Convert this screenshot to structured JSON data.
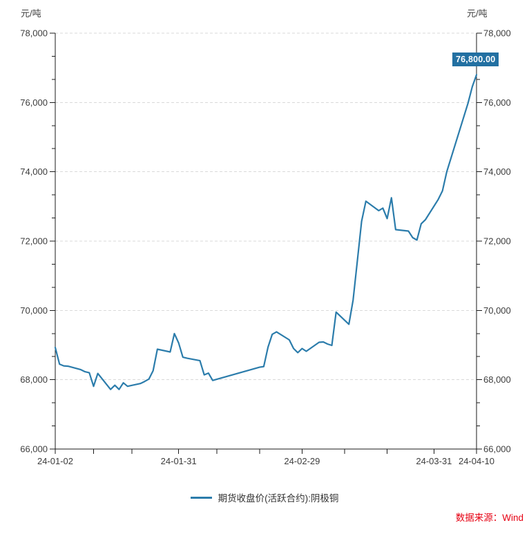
{
  "chart_data": {
    "type": "line",
    "unit_left": "元/吨",
    "unit_right": "元/吨",
    "grid": "dashed-horizontal",
    "legend_position": "bottom-center",
    "y_axis": {
      "min": 66000,
      "max": 78000,
      "major_step": 2000,
      "minor_divisions": 3,
      "tick_labels": [
        "66,000",
        "68,000",
        "70,000",
        "72,000",
        "74,000",
        "76,000",
        "78,000"
      ]
    },
    "x_axis": {
      "start_date": "24-01-02",
      "end_date": "24-04-10",
      "scale": "calendar-days",
      "tick_dates": [
        "24-01-02",
        "24-01-11",
        "24-01-20",
        "24-01-31",
        "24-02-09",
        "24-02-19",
        "24-02-29",
        "24-03-10",
        "24-03-20",
        "24-03-31",
        "24-04-10"
      ],
      "label_dates": [
        "24-01-02",
        "24-01-31",
        "24-02-29",
        "24-03-31",
        "24-04-10"
      ]
    },
    "series": [
      {
        "name": "期货收盘价(活跃合约):阴极铜",
        "color": "#2b7cab",
        "points": [
          [
            "24-01-02",
            68930
          ],
          [
            "24-01-03",
            68450
          ],
          [
            "24-01-04",
            68400
          ],
          [
            "24-01-05",
            68390
          ],
          [
            "24-01-08",
            68290
          ],
          [
            "24-01-09",
            68230
          ],
          [
            "24-01-10",
            68200
          ],
          [
            "24-01-11",
            67810
          ],
          [
            "24-01-12",
            68180
          ],
          [
            "24-01-15",
            67720
          ],
          [
            "24-01-16",
            67840
          ],
          [
            "24-01-17",
            67720
          ],
          [
            "24-01-18",
            67910
          ],
          [
            "24-01-19",
            67810
          ],
          [
            "24-01-22",
            67890
          ],
          [
            "24-01-23",
            67950
          ],
          [
            "24-01-24",
            68020
          ],
          [
            "24-01-25",
            68260
          ],
          [
            "24-01-26",
            68880
          ],
          [
            "24-01-29",
            68800
          ],
          [
            "24-01-30",
            69330
          ],
          [
            "24-01-31",
            69060
          ],
          [
            "24-02-01",
            68650
          ],
          [
            "24-02-02",
            68620
          ],
          [
            "24-02-05",
            68550
          ],
          [
            "24-02-06",
            68140
          ],
          [
            "24-02-07",
            68190
          ],
          [
            "24-02-08",
            67980
          ],
          [
            "24-02-19",
            68360
          ],
          [
            "24-02-20",
            68380
          ],
          [
            "24-02-21",
            68940
          ],
          [
            "24-02-22",
            69310
          ],
          [
            "24-02-23",
            69380
          ],
          [
            "24-02-26",
            69150
          ],
          [
            "24-02-27",
            68900
          ],
          [
            "24-02-28",
            68780
          ],
          [
            "24-02-29",
            68900
          ],
          [
            "24-03-01",
            68820
          ],
          [
            "24-03-04",
            69080
          ],
          [
            "24-03-05",
            69090
          ],
          [
            "24-03-06",
            69030
          ],
          [
            "24-03-07",
            68990
          ],
          [
            "24-03-08",
            69950
          ],
          [
            "24-03-11",
            69600
          ],
          [
            "24-03-12",
            70300
          ],
          [
            "24-03-13",
            71440
          ],
          [
            "24-03-14",
            72570
          ],
          [
            "24-03-15",
            73150
          ],
          [
            "24-03-18",
            72880
          ],
          [
            "24-03-19",
            72950
          ],
          [
            "24-03-20",
            72650
          ],
          [
            "24-03-21",
            73250
          ],
          [
            "24-03-22",
            72330
          ],
          [
            "24-03-25",
            72290
          ],
          [
            "24-03-26",
            72100
          ],
          [
            "24-03-27",
            72030
          ],
          [
            "24-03-28",
            72500
          ],
          [
            "24-03-29",
            72620
          ],
          [
            "24-04-01",
            73200
          ],
          [
            "24-04-02",
            73450
          ],
          [
            "24-04-03",
            74000
          ],
          [
            "24-04-08",
            75980
          ],
          [
            "24-04-09",
            76450
          ],
          [
            "24-04-10",
            76800
          ]
        ]
      }
    ],
    "last_price_label": "76,800.00",
    "last_price_bg": "#2270a2"
  },
  "footer": {
    "source": "数据来源：Wind",
    "source_color": "#e60012"
  }
}
